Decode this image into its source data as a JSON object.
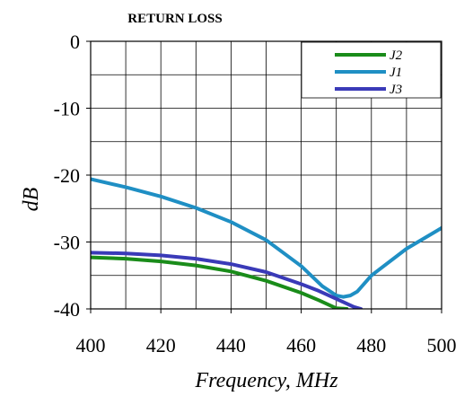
{
  "chart_data": {
    "type": "line",
    "title": "RETURN LOSS",
    "xlabel": "Frequency, MHz",
    "ylabel": "dB",
    "xlim": [
      400,
      500
    ],
    "ylim": [
      -40,
      0
    ],
    "xticks": [
      "400",
      "420",
      "440",
      "460",
      "480",
      "500"
    ],
    "yticks": [
      "0",
      "-10",
      "-20",
      "-30",
      "-40"
    ],
    "grid": true,
    "legend_position": "top-right",
    "series": [
      {
        "name": "J2",
        "color": "#1a8c1a",
        "x": [
          400,
          410,
          420,
          430,
          440,
          450,
          460,
          465,
          470,
          473
        ],
        "y": [
          -32.3,
          -32.5,
          -32.9,
          -33.5,
          -34.4,
          -35.8,
          -37.6,
          -38.7,
          -39.9,
          -40.0
        ]
      },
      {
        "name": "J1",
        "color": "#1f8fc4",
        "x": [
          400,
          410,
          420,
          430,
          440,
          450,
          460,
          466,
          470,
          472,
          474,
          476,
          480,
          490,
          500
        ],
        "y": [
          -20.6,
          -21.8,
          -23.2,
          -24.9,
          -27.0,
          -29.7,
          -33.6,
          -36.6,
          -38.0,
          -38.2,
          -38.0,
          -37.4,
          -35.0,
          -31.0,
          -27.9
        ]
      },
      {
        "name": "J3",
        "color": "#3a3ab8",
        "x": [
          400,
          410,
          420,
          430,
          440,
          450,
          460,
          465,
          470,
          475,
          477
        ],
        "y": [
          -31.6,
          -31.7,
          -32.0,
          -32.5,
          -33.3,
          -34.5,
          -36.3,
          -37.3,
          -38.5,
          -39.7,
          -40.0
        ]
      }
    ]
  }
}
